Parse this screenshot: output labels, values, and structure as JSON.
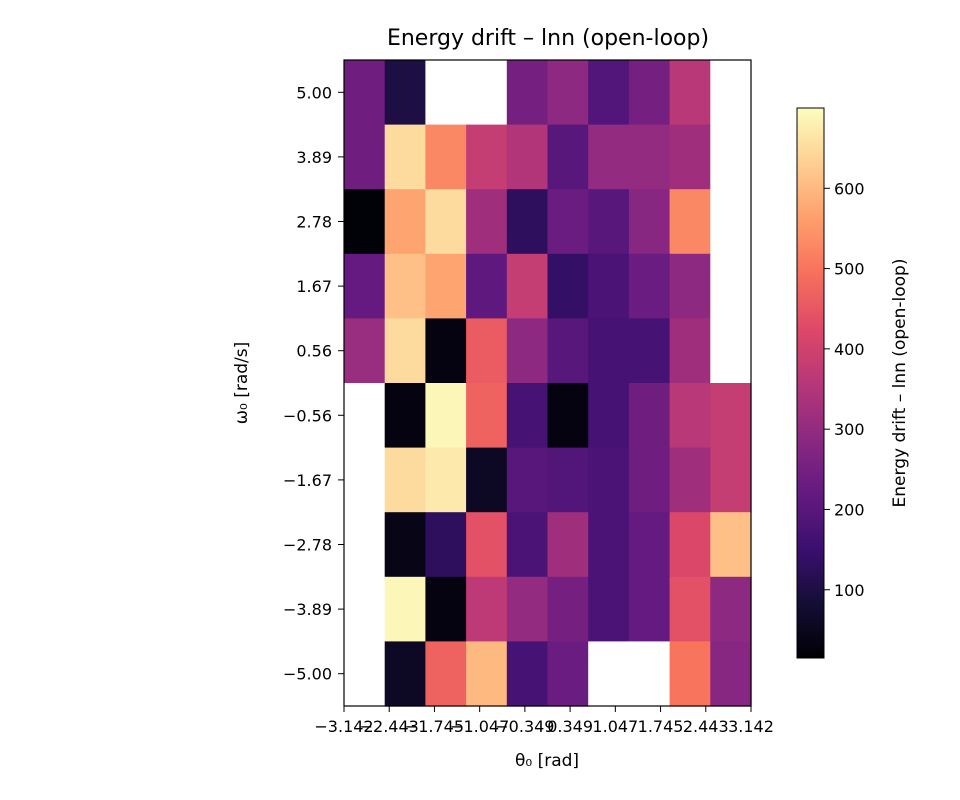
{
  "chart_data": {
    "type": "heatmap",
    "title": "Energy drift – lnn (open-loop)",
    "xlabel": "θ₀ [rad]",
    "ylabel": "ω₀ [rad/s]",
    "x_tick_labels": [
      "−3.142",
      "−2.443",
      "−1.745",
      "−1.047",
      "−0.349",
      "0.349",
      "1.047",
      "1.745",
      "2.443",
      "3.142"
    ],
    "y_tick_labels": [
      "5.00",
      "3.89",
      "2.78",
      "1.67",
      "0.56",
      "−0.56",
      "−1.67",
      "−2.78",
      "−3.89",
      "−5.00"
    ],
    "x_values": [
      -3.142,
      -2.443,
      -1.745,
      -1.047,
      -0.349,
      0.349,
      1.047,
      1.745,
      2.443,
      3.142
    ],
    "y_values": [
      5.0,
      3.89,
      2.78,
      1.67,
      0.56,
      -0.56,
      -1.67,
      -2.78,
      -3.89,
      -5.0
    ],
    "values": [
      [
        240,
        100,
        null,
        null,
        250,
        290,
        190,
        250,
        360,
        null
      ],
      [
        240,
        650,
        530,
        380,
        350,
        200,
        300,
        300,
        320,
        null
      ],
      [
        20,
        570,
        650,
        320,
        130,
        230,
        200,
        280,
        530,
        null
      ],
      [
        220,
        610,
        570,
        210,
        380,
        140,
        180,
        230,
        290,
        null
      ],
      [
        310,
        650,
        30,
        460,
        290,
        200,
        170,
        170,
        320,
        null
      ],
      [
        null,
        30,
        690,
        470,
        170,
        30,
        170,
        240,
        360,
        380
      ],
      [
        null,
        650,
        670,
        60,
        200,
        190,
        180,
        240,
        320,
        380
      ],
      [
        null,
        40,
        130,
        440,
        180,
        320,
        180,
        220,
        420,
        610
      ],
      [
        null,
        690,
        30,
        370,
        300,
        250,
        180,
        220,
        440,
        290
      ],
      [
        null,
        60,
        470,
        600,
        170,
        230,
        null,
        null,
        500,
        280
      ]
    ],
    "colorbar": {
      "label": "Energy drift – lnn (open-loop)",
      "min": 15,
      "max": 700,
      "ticks": [
        100,
        200,
        300,
        400,
        500,
        600
      ],
      "tick_labels": [
        "100",
        "200",
        "300",
        "400",
        "500",
        "600"
      ],
      "colormap": "magma"
    },
    "missing_color": "#ffffff",
    "grid": false
  }
}
